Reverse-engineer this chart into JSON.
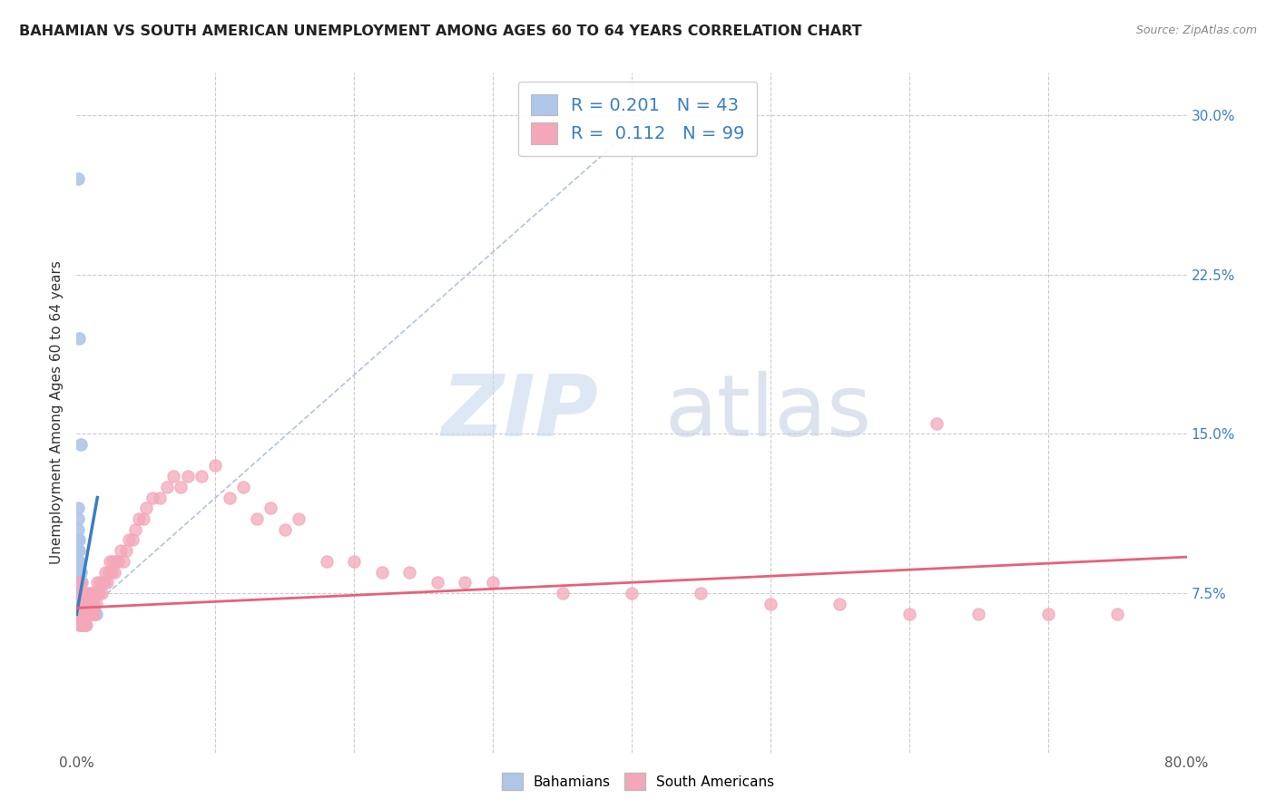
{
  "title": "BAHAMIAN VS SOUTH AMERICAN UNEMPLOYMENT AMONG AGES 60 TO 64 YEARS CORRELATION CHART",
  "source": "Source: ZipAtlas.com",
  "ylabel": "Unemployment Among Ages 60 to 64 years",
  "xlim": [
    0.0,
    0.8
  ],
  "ylim": [
    0.0,
    0.32
  ],
  "bahamian_color": "#aec6e8",
  "south_american_color": "#f4a7b9",
  "bahamian_line_color": "#3a7fc1",
  "south_american_line_color": "#e8607a",
  "diagonal_color": "#b0c4de",
  "R_bahamian": 0.201,
  "N_bahamian": 43,
  "R_south_american": 0.112,
  "N_south_american": 99,
  "watermark_zip": "ZIP",
  "watermark_atlas": "atlas",
  "legend_text_color": "#3a7fc1",
  "ytick_label_color": "#3a7fc1",
  "bahamian_x": [
    0.001,
    0.001,
    0.001,
    0.001,
    0.001,
    0.001,
    0.001,
    0.001,
    0.001,
    0.001,
    0.002,
    0.002,
    0.002,
    0.002,
    0.002,
    0.002,
    0.002,
    0.002,
    0.003,
    0.003,
    0.003,
    0.003,
    0.003,
    0.004,
    0.004,
    0.004,
    0.004,
    0.005,
    0.005,
    0.005,
    0.006,
    0.006,
    0.007,
    0.007,
    0.008,
    0.009,
    0.01,
    0.01,
    0.012,
    0.014,
    0.001,
    0.002,
    0.003
  ],
  "bahamian_y": [
    0.075,
    0.08,
    0.085,
    0.09,
    0.095,
    0.1,
    0.105,
    0.11,
    0.115,
    0.065,
    0.07,
    0.075,
    0.08,
    0.085,
    0.09,
    0.095,
    0.1,
    0.065,
    0.07,
    0.075,
    0.08,
    0.085,
    0.065,
    0.07,
    0.075,
    0.08,
    0.065,
    0.07,
    0.075,
    0.065,
    0.07,
    0.065,
    0.07,
    0.065,
    0.065,
    0.065,
    0.07,
    0.065,
    0.065,
    0.065,
    0.27,
    0.195,
    0.145
  ],
  "south_american_x": [
    0.001,
    0.001,
    0.001,
    0.002,
    0.002,
    0.002,
    0.002,
    0.002,
    0.003,
    0.003,
    0.003,
    0.003,
    0.003,
    0.004,
    0.004,
    0.004,
    0.004,
    0.005,
    0.005,
    0.005,
    0.005,
    0.006,
    0.006,
    0.006,
    0.006,
    0.007,
    0.007,
    0.007,
    0.008,
    0.008,
    0.008,
    0.009,
    0.009,
    0.01,
    0.01,
    0.01,
    0.011,
    0.011,
    0.012,
    0.012,
    0.013,
    0.013,
    0.014,
    0.015,
    0.015,
    0.016,
    0.017,
    0.018,
    0.019,
    0.02,
    0.021,
    0.022,
    0.023,
    0.024,
    0.025,
    0.026,
    0.027,
    0.028,
    0.03,
    0.032,
    0.034,
    0.036,
    0.038,
    0.04,
    0.042,
    0.045,
    0.048,
    0.05,
    0.055,
    0.06,
    0.065,
    0.07,
    0.075,
    0.08,
    0.09,
    0.1,
    0.11,
    0.12,
    0.13,
    0.14,
    0.15,
    0.16,
    0.18,
    0.2,
    0.22,
    0.24,
    0.26,
    0.28,
    0.3,
    0.35,
    0.4,
    0.45,
    0.5,
    0.55,
    0.6,
    0.65,
    0.7,
    0.75,
    0.62
  ],
  "south_american_y": [
    0.065,
    0.07,
    0.075,
    0.06,
    0.065,
    0.07,
    0.075,
    0.08,
    0.06,
    0.065,
    0.07,
    0.075,
    0.08,
    0.06,
    0.065,
    0.07,
    0.075,
    0.06,
    0.065,
    0.07,
    0.075,
    0.06,
    0.065,
    0.07,
    0.075,
    0.06,
    0.065,
    0.07,
    0.065,
    0.07,
    0.075,
    0.065,
    0.07,
    0.065,
    0.07,
    0.075,
    0.065,
    0.075,
    0.07,
    0.075,
    0.065,
    0.075,
    0.07,
    0.075,
    0.08,
    0.075,
    0.08,
    0.075,
    0.08,
    0.08,
    0.085,
    0.08,
    0.085,
    0.09,
    0.085,
    0.09,
    0.085,
    0.09,
    0.09,
    0.095,
    0.09,
    0.095,
    0.1,
    0.1,
    0.105,
    0.11,
    0.11,
    0.115,
    0.12,
    0.12,
    0.125,
    0.13,
    0.125,
    0.13,
    0.13,
    0.135,
    0.12,
    0.125,
    0.11,
    0.115,
    0.105,
    0.11,
    0.09,
    0.09,
    0.085,
    0.085,
    0.08,
    0.08,
    0.08,
    0.075,
    0.075,
    0.075,
    0.07,
    0.07,
    0.065,
    0.065,
    0.065,
    0.065,
    0.155
  ]
}
